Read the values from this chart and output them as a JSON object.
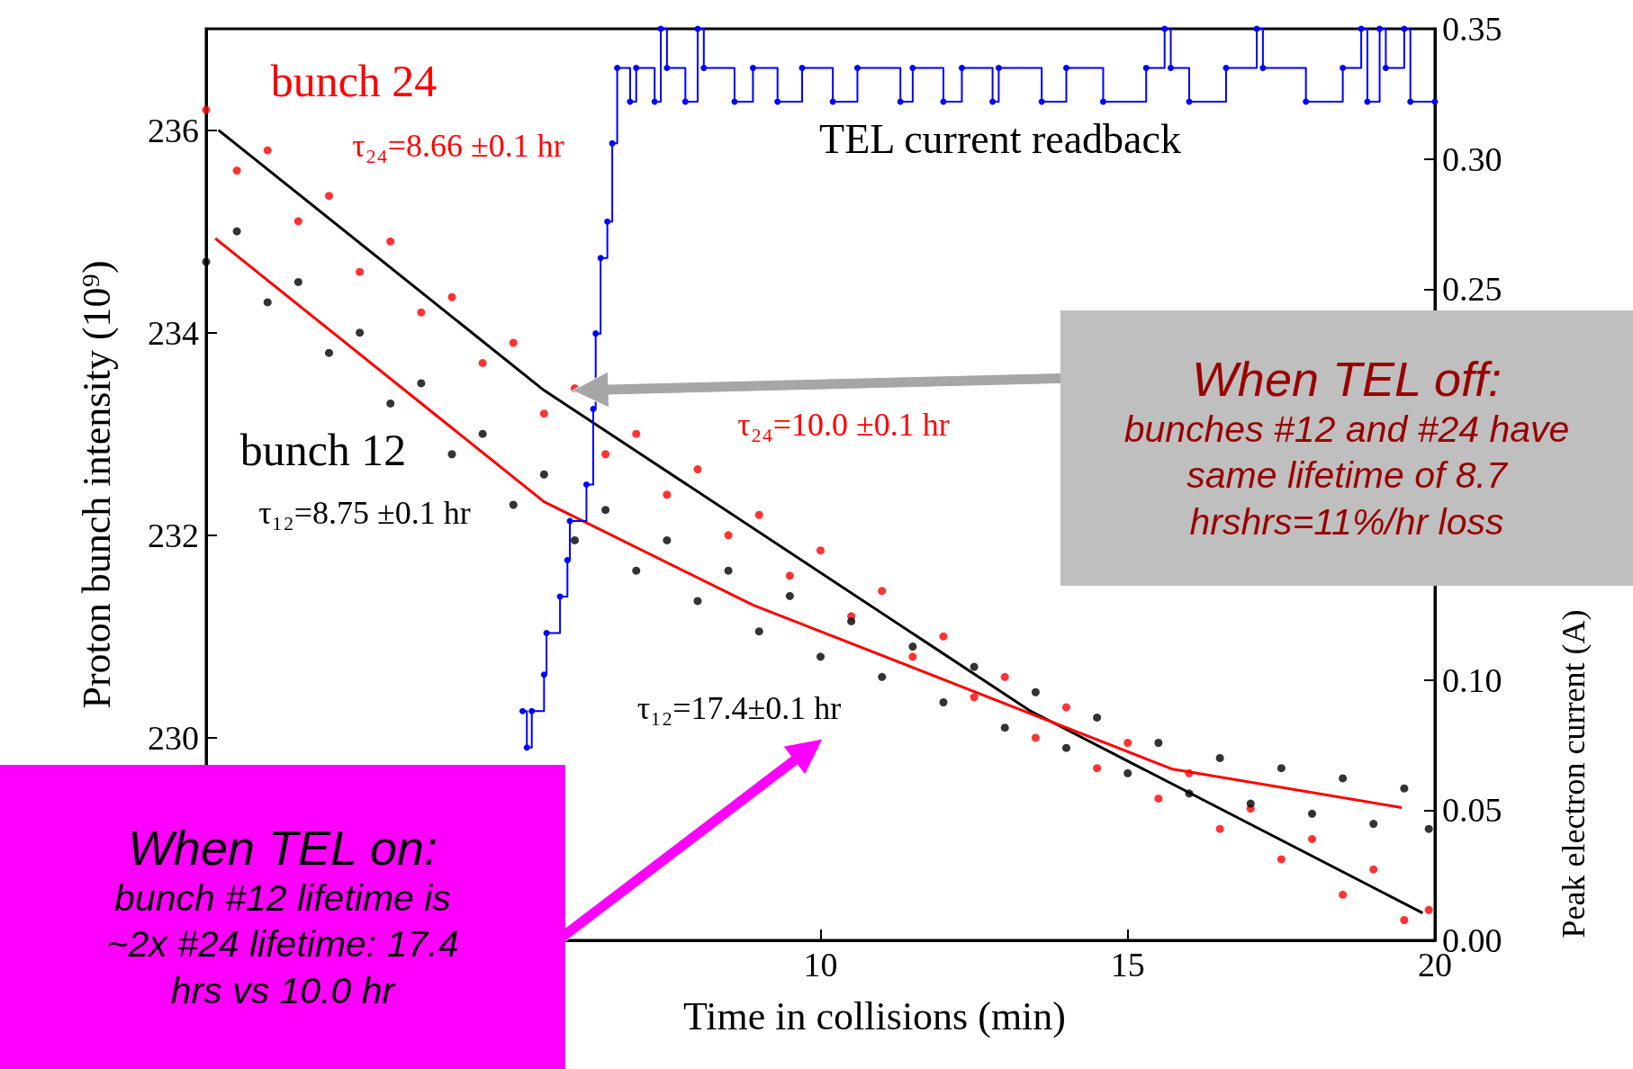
{
  "chart_data": {
    "type": "scatter",
    "xlabel": "Time in collisions (min)",
    "ylabel": "Proton bunch intensity (10⁹)",
    "y2label": "Peak electron current (A)",
    "xlim": [
      0,
      20
    ],
    "xticks": [
      10,
      15,
      20
    ],
    "ylim": [
      228,
      237
    ],
    "yticks": [
      230,
      232,
      234,
      236
    ],
    "y2lim": [
      0,
      0.35
    ],
    "y2ticks": [
      {
        "value": 0,
        "label": "0.00"
      },
      {
        "value": 0.05,
        "label": "0.05"
      },
      {
        "value": 0.1,
        "label": "0.10"
      },
      {
        "value": 0.15,
        "label": null
      },
      {
        "value": 0.2,
        "label": null
      },
      {
        "value": 0.25,
        "label": "0.25"
      },
      {
        "value": 0.3,
        "label": "0.30"
      },
      {
        "value": 0.35,
        "label": "0.35"
      }
    ],
    "grid": false,
    "series": [
      {
        "type": "scatter",
        "color": "#ff0000",
        "marker": "circle",
        "x": [
          0,
          0.5,
          1,
          1.5,
          2,
          2.5,
          3,
          3.5,
          4,
          4.5,
          5,
          5.5,
          6,
          6.5,
          7,
          7.5,
          8,
          8.5,
          9,
          9.5,
          10,
          10.5,
          11,
          11.5,
          12,
          12.5,
          13,
          13.5,
          14,
          14.5,
          15,
          15.5,
          16,
          16.5,
          17,
          17.5,
          18,
          18.5,
          19,
          19.5,
          19.9
        ],
        "values": [
          236.2,
          235.6,
          235.8,
          235.1,
          235.35,
          234.6,
          234.9,
          234.2,
          234.35,
          233.7,
          233.9,
          233.2,
          233.45,
          232.8,
          233.0,
          232.4,
          232.65,
          232.0,
          232.2,
          231.6,
          231.85,
          231.2,
          231.45,
          230.8,
          231.0,
          230.4,
          230.6,
          230.0,
          230.3,
          229.7,
          229.95,
          229.4,
          229.65,
          229.1,
          229.3,
          228.8,
          229.0,
          228.45,
          228.7,
          228.2,
          228.3
        ]
      },
      {
        "type": "scatter",
        "color": "#000000",
        "marker": "circle",
        "x": [
          0,
          0.5,
          1,
          1.5,
          2,
          2.5,
          3,
          3.5,
          4,
          4.5,
          5,
          5.5,
          6,
          6.5,
          7,
          7.5,
          8,
          8.5,
          9,
          9.5,
          10,
          10.5,
          11,
          11.5,
          12,
          12.5,
          13,
          13.5,
          14,
          14.5,
          15,
          15.5,
          16,
          16.5,
          17,
          17.5,
          18,
          18.5,
          19,
          19.5,
          19.9
        ],
        "values": [
          234.7,
          235.0,
          234.3,
          234.5,
          233.8,
          234.0,
          233.3,
          233.5,
          232.8,
          233.0,
          232.3,
          232.6,
          231.95,
          232.25,
          231.65,
          231.95,
          231.35,
          231.65,
          231.05,
          231.4,
          230.8,
          231.15,
          230.6,
          230.9,
          230.35,
          230.7,
          230.1,
          230.45,
          229.9,
          230.2,
          229.65,
          229.95,
          229.45,
          229.8,
          229.35,
          229.7,
          229.25,
          229.6,
          229.15,
          229.5,
          229.1
        ]
      },
      {
        "type": "line",
        "color": "#000000",
        "marker": "none",
        "x": [
          0.2,
          5.5,
          13.4,
          19.8
        ],
        "values": [
          236.0,
          233.43,
          230.27,
          228.27
        ]
      },
      {
        "type": "line",
        "color": "#ff0000",
        "marker": "none",
        "x": [
          0.15,
          5.5,
          8.9,
          15.73,
          19.46
        ],
        "values": [
          234.93,
          232.33,
          231.31,
          229.69,
          229.31
        ]
      },
      {
        "type": "step",
        "axis": "y2",
        "color": "#0000ff",
        "marker": "circle",
        "x": [
          5.15,
          5.22,
          5.3,
          5.5,
          5.54,
          5.76,
          5.88,
          5.92,
          6.19,
          6.3,
          6.34,
          6.42,
          6.53,
          6.61,
          6.69,
          6.9,
          7.0,
          7.3,
          7.4,
          7.5,
          7.8,
          8.0,
          8.1,
          8.6,
          8.9,
          9.3,
          9.7,
          10.2,
          10.6,
          11.3,
          11.5,
          12.0,
          12.3,
          12.8,
          12.9,
          13.6,
          14.0,
          14.6,
          15.3,
          15.6,
          15.7,
          16.0,
          16.6,
          17.1,
          17.2,
          17.9,
          18.5,
          18.8,
          18.9,
          19.1,
          19.2,
          19.5,
          19.6,
          20.0
        ],
        "values": [
          0.088,
          0.074,
          0.088,
          0.102,
          0.118,
          0.132,
          0.146,
          0.161,
          0.175,
          0.204,
          0.233,
          0.262,
          0.276,
          0.306,
          0.335,
          0.322,
          0.335,
          0.322,
          0.35,
          0.335,
          0.322,
          0.35,
          0.335,
          0.322,
          0.335,
          0.322,
          0.335,
          0.322,
          0.335,
          0.322,
          0.335,
          0.322,
          0.335,
          0.322,
          0.335,
          0.322,
          0.335,
          0.322,
          0.335,
          0.35,
          0.335,
          0.322,
          0.335,
          0.35,
          0.335,
          0.322,
          0.335,
          0.35,
          0.322,
          0.35,
          0.335,
          0.35,
          0.322,
          0.322
        ]
      }
    ],
    "annotations": [
      "bunch 24",
      "τ₂₄=8.66 ±0.1 hr",
      "bunch 12",
      "τ₁₂=8.75 ±0.1 hr",
      "τ₂₄=10.0 ±0.1 hr",
      "τ₁₂=17.4±0.1 hr",
      "TEL current readback",
      "When TEL off:",
      "bunches #12 and #24 have same lifetime of 8.7 hrshrs=11%/hr loss",
      "When TEL on:",
      "bunch #12 lifetime is ~2x #24 lifetime: 17.4 hrs vs 10.0 hr"
    ]
  }
}
